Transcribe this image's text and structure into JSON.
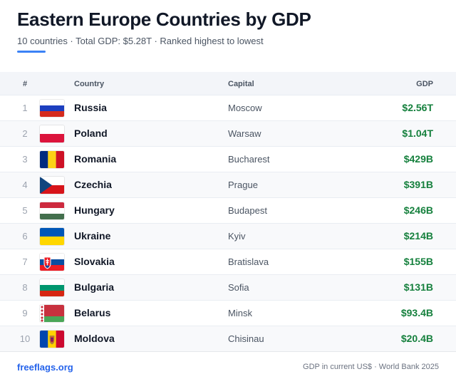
{
  "header": {
    "title": "Eastern Europe Countries by GDP",
    "subtitle": "10 countries · Total GDP: $5.28T · Ranked highest to lowest",
    "accent_color": "#3b82f6"
  },
  "table": {
    "columns": {
      "rank": "#",
      "country": "Country",
      "capital": "Capital",
      "gdp": "GDP"
    },
    "rows": [
      {
        "rank": "1",
        "country": "Russia",
        "capital": "Moscow",
        "gdp": "$2.56T",
        "flag": "russia-flag-icon"
      },
      {
        "rank": "2",
        "country": "Poland",
        "capital": "Warsaw",
        "gdp": "$1.04T",
        "flag": "poland-flag-icon"
      },
      {
        "rank": "3",
        "country": "Romania",
        "capital": "Bucharest",
        "gdp": "$429B",
        "flag": "romania-flag-icon"
      },
      {
        "rank": "4",
        "country": "Czechia",
        "capital": "Prague",
        "gdp": "$391B",
        "flag": "czechia-flag-icon"
      },
      {
        "rank": "5",
        "country": "Hungary",
        "capital": "Budapest",
        "gdp": "$246B",
        "flag": "hungary-flag-icon"
      },
      {
        "rank": "6",
        "country": "Ukraine",
        "capital": "Kyiv",
        "gdp": "$214B",
        "flag": "ukraine-flag-icon"
      },
      {
        "rank": "7",
        "country": "Slovakia",
        "capital": "Bratislava",
        "gdp": "$155B",
        "flag": "slovakia-flag-icon"
      },
      {
        "rank": "8",
        "country": "Bulgaria",
        "capital": "Sofia",
        "gdp": "$131B",
        "flag": "bulgaria-flag-icon"
      },
      {
        "rank": "9",
        "country": "Belarus",
        "capital": "Minsk",
        "gdp": "$93.4B",
        "flag": "belarus-flag-icon"
      },
      {
        "rank": "10",
        "country": "Moldova",
        "capital": "Chisinau",
        "gdp": "$20.4B",
        "flag": "moldova-flag-icon"
      }
    ],
    "gdp_color": "#15803d"
  },
  "footer": {
    "brand": "freeflags.org",
    "source": "GDP in current US$ · World Bank 2025",
    "brand_color": "#2563eb"
  }
}
